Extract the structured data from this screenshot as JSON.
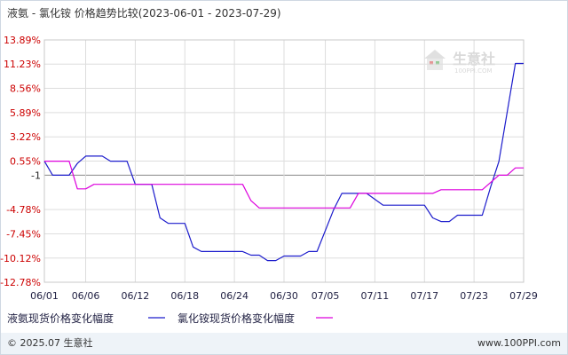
{
  "chart_data": {
    "type": "line",
    "title": "液氨 - 氯化铵 价格趋势比较(2023-06-01 - 2023-07-29)",
    "y_ticks": [
      "13.89%",
      "11.23%",
      "8.56%",
      "5.89%",
      "3.22%",
      "0.55%",
      "-1",
      "-4.78%",
      "-7.45%",
      "-10.12%",
      "-12.78%"
    ],
    "y_tick_values": [
      13.89,
      11.23,
      8.56,
      5.89,
      3.22,
      0.55,
      -1.0,
      -4.78,
      -7.45,
      -10.12,
      -12.78
    ],
    "ylim": [
      -12.78,
      13.89
    ],
    "x_ticks": [
      "06/01",
      "06/06",
      "06/12",
      "06/18",
      "06/24",
      "06/30",
      "07/05",
      "07/11",
      "07/17",
      "07/23",
      "07/29"
    ],
    "x_tick_values": [
      "2023-06-01",
      "2023-06-06",
      "2023-06-12",
      "2023-06-18",
      "2023-06-24",
      "2023-06-30",
      "2023-07-05",
      "2023-07-11",
      "2023-07-17",
      "2023-07-23",
      "2023-07-29"
    ],
    "xlim": [
      "2023-06-01",
      "2023-07-29"
    ],
    "grid": true,
    "legend_position": "bottom-left",
    "series": [
      {
        "name": "液氨现货价格变化幅度",
        "color": "#1c1ccc",
        "points": [
          [
            "2023-06-01",
            0.55
          ],
          [
            "2023-06-02",
            -1.0
          ],
          [
            "2023-06-04",
            -1.0
          ],
          [
            "2023-06-05",
            0.3
          ],
          [
            "2023-06-06",
            1.1
          ],
          [
            "2023-06-08",
            1.1
          ],
          [
            "2023-06-09",
            0.55
          ],
          [
            "2023-06-11",
            0.55
          ],
          [
            "2023-06-12",
            -2.0
          ],
          [
            "2023-06-14",
            -2.0
          ],
          [
            "2023-06-15",
            -5.7
          ],
          [
            "2023-06-16",
            -6.3
          ],
          [
            "2023-06-18",
            -6.3
          ],
          [
            "2023-06-19",
            -8.9
          ],
          [
            "2023-06-20",
            -9.4
          ],
          [
            "2023-06-25",
            -9.4
          ],
          [
            "2023-06-26",
            -9.8
          ],
          [
            "2023-06-27",
            -9.8
          ],
          [
            "2023-06-28",
            -10.4
          ],
          [
            "2023-06-29",
            -10.4
          ],
          [
            "2023-06-30",
            -9.9
          ],
          [
            "2023-07-02",
            -9.9
          ],
          [
            "2023-07-03",
            -9.4
          ],
          [
            "2023-07-04",
            -9.4
          ],
          [
            "2023-07-06",
            -4.8
          ],
          [
            "2023-07-07",
            -3.0
          ],
          [
            "2023-07-10",
            -3.0
          ],
          [
            "2023-07-12",
            -4.3
          ],
          [
            "2023-07-17",
            -4.3
          ],
          [
            "2023-07-18",
            -5.7
          ],
          [
            "2023-07-19",
            -6.1
          ],
          [
            "2023-07-20",
            -6.1
          ],
          [
            "2023-07-21",
            -5.4
          ],
          [
            "2023-07-24",
            -5.4
          ],
          [
            "2023-07-25",
            -2.3
          ],
          [
            "2023-07-26",
            0.5
          ],
          [
            "2023-07-28",
            11.3
          ],
          [
            "2023-07-29",
            11.3
          ]
        ]
      },
      {
        "name": "氯化铵现货价格变化幅度",
        "color": "#dd00dd",
        "points": [
          [
            "2023-06-01",
            0.55
          ],
          [
            "2023-06-04",
            0.55
          ],
          [
            "2023-06-05",
            -2.5
          ],
          [
            "2023-06-06",
            -2.5
          ],
          [
            "2023-06-07",
            -2.0
          ],
          [
            "2023-06-25",
            -2.0
          ],
          [
            "2023-06-26",
            -3.8
          ],
          [
            "2023-06-27",
            -4.6
          ],
          [
            "2023-06-28",
            -4.6
          ],
          [
            "2023-07-08",
            -4.6
          ],
          [
            "2023-07-09",
            -3.0
          ],
          [
            "2023-07-18",
            -3.0
          ],
          [
            "2023-07-19",
            -2.6
          ],
          [
            "2023-07-24",
            -2.6
          ],
          [
            "2023-07-26",
            -1.0
          ],
          [
            "2023-07-27",
            -1.0
          ],
          [
            "2023-07-28",
            -0.2
          ],
          [
            "2023-07-29",
            -0.2
          ]
        ]
      }
    ]
  },
  "watermark": {
    "text": "生意社",
    "url_text": "100PPI.COM"
  },
  "footer": {
    "copyright": "© 2025.07 生意社",
    "site": "www.100PPI.com"
  },
  "colors": {
    "y_tick_positive": "#cc0000",
    "y_tick_neutral": "#222222",
    "x_tick": "#222244",
    "grid": "#dddddd",
    "zero_line": "#888888",
    "footer_bg": "#eef3f8",
    "watermark": "#bbbbbb"
  }
}
